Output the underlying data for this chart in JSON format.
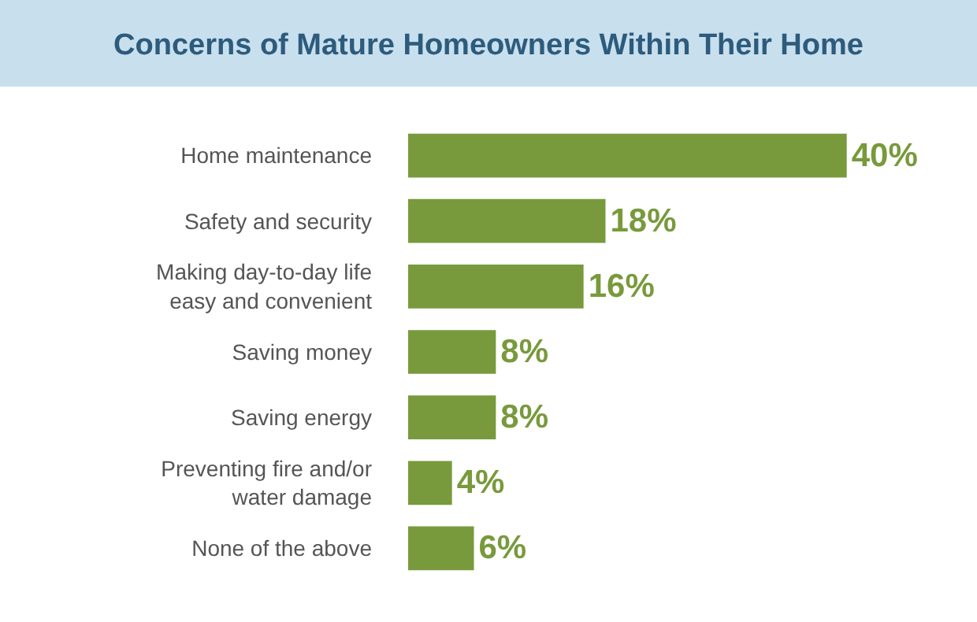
{
  "chart_data": {
    "type": "bar",
    "orientation": "horizontal",
    "title": "Concerns of Mature Homeowners Within Their Home",
    "categories": [
      "Home maintenance",
      "Safety and security",
      "Making day-to-day life\neasy and convenient",
      "Saving money",
      "Saving energy",
      "Preventing fire and/or\nwater damage",
      "None of the above"
    ],
    "values": [
      40,
      18,
      16,
      8,
      8,
      4,
      6
    ],
    "value_labels": [
      "40%",
      "18%",
      "16%",
      "8%",
      "8%",
      "4%",
      "6%"
    ],
    "color": "#789a3c"
  }
}
